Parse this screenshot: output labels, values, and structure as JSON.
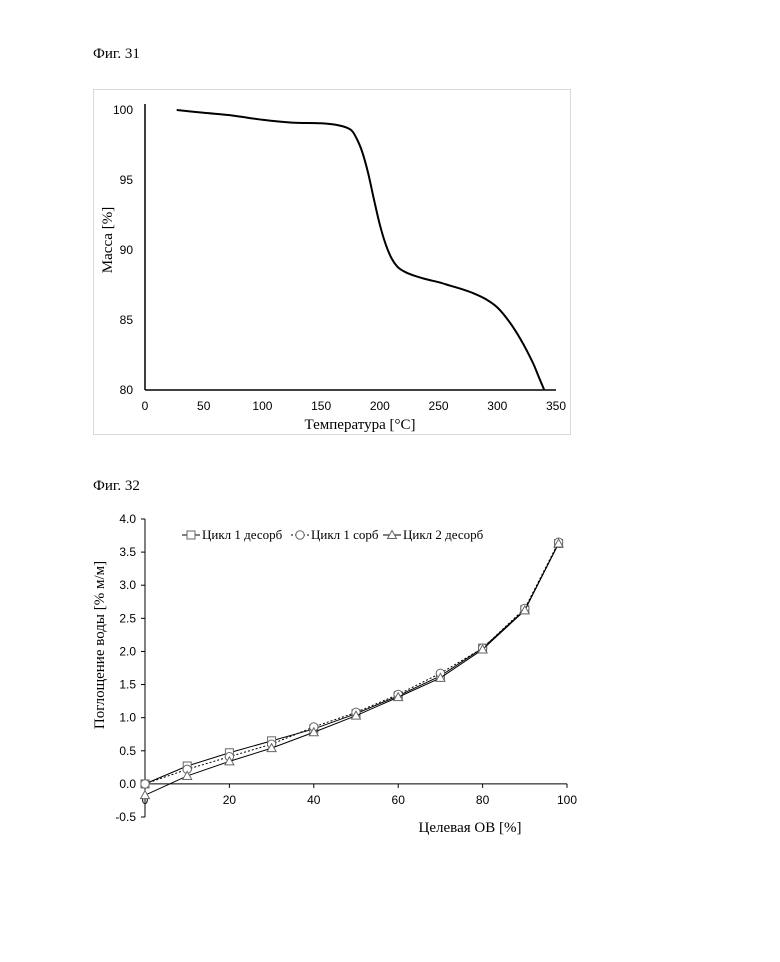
{
  "figures": {
    "fig31": "Фиг. 31",
    "fig32": "Фиг. 32"
  },
  "chart_data": [
    {
      "type": "line",
      "title": "",
      "xlabel": "Температура [°C]",
      "ylabel": "Масса [%]",
      "xlim": [
        0,
        350
      ],
      "ylim": [
        80,
        100
      ],
      "xticks": [
        "0",
        "50",
        "100",
        "150",
        "200",
        "250",
        "300",
        "350"
      ],
      "yticks": [
        "80",
        "85",
        "90",
        "95",
        "100"
      ],
      "grid": false,
      "series": [
        {
          "color": "#000000",
          "x": [
            27,
            50,
            75,
            100,
            125,
            150,
            165,
            175,
            180,
            185,
            190,
            195,
            200,
            205,
            210,
            215,
            220,
            225,
            230,
            240,
            250,
            260,
            270,
            280,
            290,
            300,
            310,
            320,
            330,
            335,
            340
          ],
          "y": [
            100,
            99.8,
            99.6,
            99.3,
            99.1,
            99.05,
            98.9,
            98.6,
            98.0,
            97.0,
            95.5,
            93.6,
            91.8,
            90.4,
            89.4,
            88.8,
            88.5,
            88.3,
            88.15,
            87.9,
            87.7,
            87.45,
            87.2,
            86.9,
            86.5,
            85.9,
            84.9,
            83.6,
            82.0,
            81.0,
            80.0
          ]
        }
      ]
    },
    {
      "type": "line",
      "title": "",
      "xlabel": "Целевая ОВ [%]",
      "ylabel": "Поглощение воды [% м/м]",
      "xlim": [
        0,
        100
      ],
      "ylim": [
        -0.5,
        4.0
      ],
      "xticks": [
        "0",
        "20",
        "40",
        "60",
        "80",
        "100"
      ],
      "yticks": [
        "-0.5",
        "0.0",
        "0.5",
        "1.0",
        "1.5",
        "2.0",
        "2.5",
        "3.0",
        "3.5",
        "4.0"
      ],
      "grid": false,
      "legend": "top-left",
      "series": [
        {
          "name": "Цикл 1 десорб",
          "marker": "square",
          "dash": "solid",
          "x": [
            0,
            10,
            20,
            30,
            40,
            50,
            60,
            70,
            80,
            90,
            98
          ],
          "y": [
            0.0,
            0.27,
            0.47,
            0.65,
            0.83,
            1.06,
            1.33,
            1.63,
            2.05,
            2.63,
            3.63
          ]
        },
        {
          "name": "Цикл 1 сорб",
          "marker": "circle",
          "dash": "dotted",
          "x": [
            0,
            10,
            20,
            30,
            40,
            50,
            60,
            70,
            80,
            90,
            98
          ],
          "y": [
            0.0,
            0.22,
            0.41,
            0.6,
            0.86,
            1.08,
            1.35,
            1.67,
            2.05,
            2.65,
            3.65
          ]
        },
        {
          "name": "Цикл 2 десорб",
          "marker": "triangle",
          "dash": "solid",
          "x": [
            0,
            10,
            20,
            30,
            40,
            50,
            60,
            70,
            80,
            90,
            98
          ],
          "y": [
            -0.17,
            0.12,
            0.34,
            0.54,
            0.78,
            1.03,
            1.31,
            1.6,
            2.03,
            2.62,
            3.63
          ]
        }
      ]
    }
  ]
}
